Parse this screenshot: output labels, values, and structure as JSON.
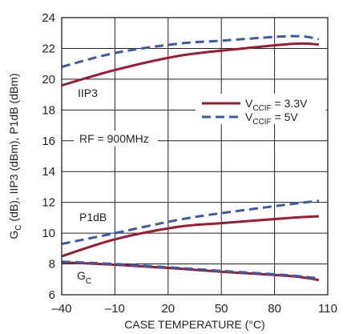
{
  "chart_data": {
    "type": "line",
    "title": "",
    "xlabel": "CASE TEMPERATURE (°C)",
    "ylabel": "G_C (dB), IIP3 (dBm), P1dB (dBm)",
    "ylabel_parts": [
      "G",
      "C",
      " (dB), IIP3 (dBm), P1dB (dBm)"
    ],
    "xlim": [
      -40,
      110
    ],
    "ylim": [
      6,
      24
    ],
    "x_ticks": [
      -40,
      -10,
      20,
      50,
      80,
      110
    ],
    "x_tick_labels": [
      "–40",
      "–10",
      "20",
      "50",
      "80",
      "110"
    ],
    "y_ticks": [
      6,
      8,
      10,
      12,
      14,
      16,
      18,
      20,
      22,
      24
    ],
    "grid": true,
    "legend": {
      "position": "right",
      "entries": [
        {
          "main": "V",
          "sub": "CCIF",
          "rest": " = 3.3V",
          "color": "#9b1b30",
          "style": "solid"
        },
        {
          "main": "V",
          "sub": "CCIF",
          "rest": " = 5V",
          "color": "#3c5aa6",
          "style": "dashed"
        }
      ]
    },
    "annotations": {
      "iip3": "IIP3",
      "rf": "RF = 900MHz",
      "p1db": "P1dB",
      "gc_main": "G",
      "gc_sub": "C"
    },
    "series": [
      {
        "id": "iip3-3v3",
        "color": "#9b1b30",
        "dash": "solid",
        "x": [
          -40,
          -10,
          25,
          50,
          90,
          105
        ],
        "y": [
          19.6,
          20.6,
          21.5,
          21.85,
          22.3,
          22.25
        ]
      },
      {
        "id": "iip3-5v",
        "color": "#3c5aa6",
        "dash": "dashed",
        "x": [
          -40,
          -10,
          25,
          50,
          90,
          105
        ],
        "y": [
          20.8,
          21.7,
          22.3,
          22.5,
          22.8,
          22.6
        ]
      },
      {
        "id": "p1db-3v3",
        "color": "#9b1b30",
        "dash": "solid",
        "x": [
          -40,
          -10,
          25,
          50,
          90,
          105
        ],
        "y": [
          8.5,
          9.6,
          10.4,
          10.65,
          11.0,
          11.1
        ]
      },
      {
        "id": "p1db-5v",
        "color": "#3c5aa6",
        "dash": "dashed",
        "x": [
          -40,
          -10,
          25,
          50,
          90,
          105
        ],
        "y": [
          9.3,
          10.0,
          10.85,
          11.3,
          11.9,
          12.1
        ]
      },
      {
        "id": "gc-3v3",
        "color": "#9b1b30",
        "dash": "solid",
        "x": [
          -40,
          -10,
          25,
          50,
          90,
          105
        ],
        "y": [
          8.1,
          7.95,
          7.7,
          7.5,
          7.2,
          6.95
        ]
      },
      {
        "id": "gc-5v",
        "color": "#3c5aa6",
        "dash": "dashed",
        "x": [
          -40,
          -10,
          25,
          50,
          90,
          105
        ],
        "y": [
          8.15,
          8.0,
          7.75,
          7.55,
          7.25,
          7.05
        ]
      }
    ]
  }
}
